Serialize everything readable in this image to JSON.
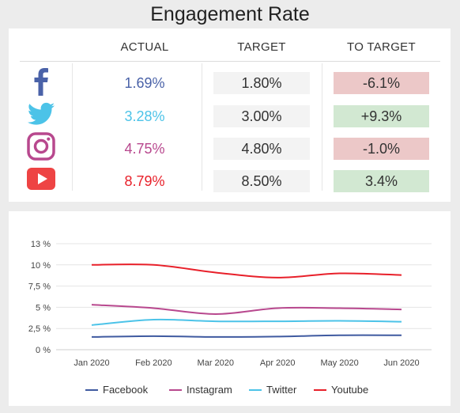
{
  "title": "Engagement Rate",
  "headers": {
    "actual": "ACTUAL",
    "target": "TARGET",
    "to_target": "TO TARGET"
  },
  "rows": [
    {
      "network": "Facebook",
      "icon": "facebook-icon",
      "actual": "1.69%",
      "target": "1.80%",
      "to_target": "-6.1%",
      "status": "below",
      "color": "#4a62a8"
    },
    {
      "network": "Twitter",
      "icon": "twitter-icon",
      "actual": "3.28%",
      "target": "3.00%",
      "to_target": "+9.3%",
      "status": "above",
      "color": "#4cc3e8"
    },
    {
      "network": "Instagram",
      "icon": "instagram-icon",
      "actual": "4.75%",
      "target": "4.80%",
      "to_target": "-1.0%",
      "status": "below",
      "color": "#b8488e"
    },
    {
      "network": "Youtube",
      "icon": "youtube-icon",
      "actual": "8.79%",
      "target": "8.50%",
      "to_target": "3.4%",
      "status": "above",
      "color": "#e8202a"
    }
  ],
  "colors": {
    "below_bg": "#ecc8c8",
    "above_bg": "#d2e8d2"
  },
  "chart_data": {
    "type": "line",
    "categories": [
      "Jan 2020",
      "Feb 2020",
      "Mar 2020",
      "Apr 2020",
      "May 2020",
      "Jun 2020"
    ],
    "yticks": [
      "0 %",
      "2,5 %",
      "5 %",
      "7,5 %",
      "10 %",
      "13 %"
    ],
    "ytick_values": [
      0,
      2.5,
      5,
      7.5,
      10,
      12.5
    ],
    "ylim": [
      0,
      12.5
    ],
    "series": [
      {
        "name": "Facebook",
        "color": "#3f5aa0",
        "values": [
          1.5,
          1.6,
          1.5,
          1.55,
          1.7,
          1.7
        ]
      },
      {
        "name": "Instagram",
        "color": "#b8488e",
        "values": [
          5.3,
          4.9,
          4.2,
          4.9,
          4.9,
          4.75
        ]
      },
      {
        "name": "Twitter",
        "color": "#4cc3e8",
        "values": [
          2.9,
          3.55,
          3.35,
          3.35,
          3.4,
          3.3
        ]
      },
      {
        "name": "Youtube",
        "color": "#e8202a",
        "values": [
          10.0,
          10.0,
          9.1,
          8.5,
          9.0,
          8.8
        ]
      }
    ],
    "grid": true,
    "legend_position": "bottom"
  }
}
